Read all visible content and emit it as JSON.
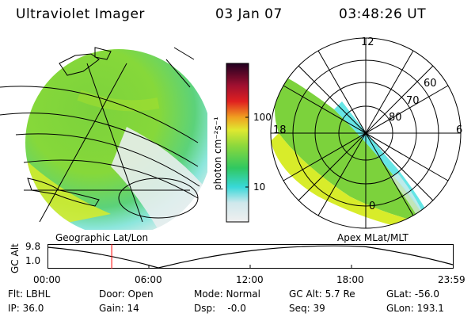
{
  "header": {
    "title": "Ultraviolet Imager",
    "date": "03 Jan 07",
    "time": "03:48:26 UT"
  },
  "colorbar": {
    "unit_label": "photon cm⁻²s⁻¹",
    "ticks": [
      "100",
      "10"
    ]
  },
  "polar": {
    "mlt_labels": [
      "12",
      "18",
      "6",
      "0"
    ],
    "lat_labels": [
      "60",
      "70",
      "80"
    ]
  },
  "timeline": {
    "left_title": "Geographic Lat/Lon",
    "right_title": "Apex MLat/MLT",
    "ylabel": "GC Alt",
    "ytick_top": "9.8",
    "ytick_bottom": "1.0",
    "xticks": [
      "00:00",
      "06:00",
      "12:00",
      "18:00",
      "23:59"
    ],
    "marker_time": "03:48",
    "marker_color": "#ff0000"
  },
  "footer": {
    "flt": "Flt: LBHL",
    "door": "Door: Open",
    "mode": "Mode: Normal",
    "gc_alt": "GC Alt: 5.7 Re",
    "glat": "GLat: -56.0",
    "ip": "IP: 36.0",
    "gain": "Gain: 14",
    "dsp": "Dsp:    -0.0",
    "seq": "Seq: 39",
    "glon": "GLon: 193.1"
  },
  "colors": {
    "aurora_green": "#7cd23c",
    "aurora_yellow": "#d8ec2a",
    "aurora_cyan": "#40e0e0",
    "aurora_pale": "#e0ecec"
  }
}
